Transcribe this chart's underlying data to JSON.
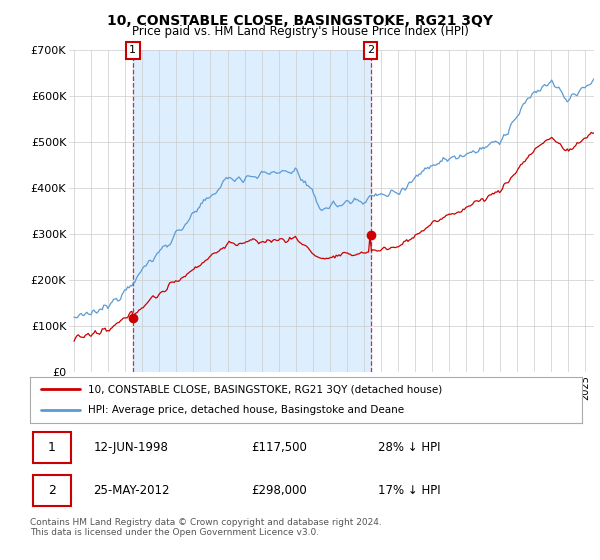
{
  "title": "10, CONSTABLE CLOSE, BASINGSTOKE, RG21 3QY",
  "subtitle": "Price paid vs. HM Land Registry's House Price Index (HPI)",
  "legend_line1": "10, CONSTABLE CLOSE, BASINGSTOKE, RG21 3QY (detached house)",
  "legend_line2": "HPI: Average price, detached house, Basingstoke and Deane",
  "table_rows": [
    {
      "num": "1",
      "date": "12-JUN-1998",
      "price": "£117,500",
      "pct": "28% ↓ HPI"
    },
    {
      "num": "2",
      "date": "25-MAY-2012",
      "price": "£298,000",
      "pct": "17% ↓ HPI"
    }
  ],
  "footnote": "Contains HM Land Registry data © Crown copyright and database right 2024.\nThis data is licensed under the Open Government Licence v3.0.",
  "sale_prices": [
    117500,
    298000
  ],
  "sale_year1": 1998.44,
  "sale_year2": 2012.39,
  "ylim": [
    0,
    700000
  ],
  "yticks": [
    0,
    100000,
    200000,
    300000,
    400000,
    500000,
    600000,
    700000
  ],
  "ytick_labels": [
    "£0",
    "£100K",
    "£200K",
    "£300K",
    "£400K",
    "£500K",
    "£600K",
    "£700K"
  ],
  "red_color": "#cc0000",
  "blue_color": "#5b9bd5",
  "shade_color": "#ddeeff",
  "grid_color": "#cccccc",
  "xmin": 1995.0,
  "xmax": 2025.5,
  "n_points": 370
}
